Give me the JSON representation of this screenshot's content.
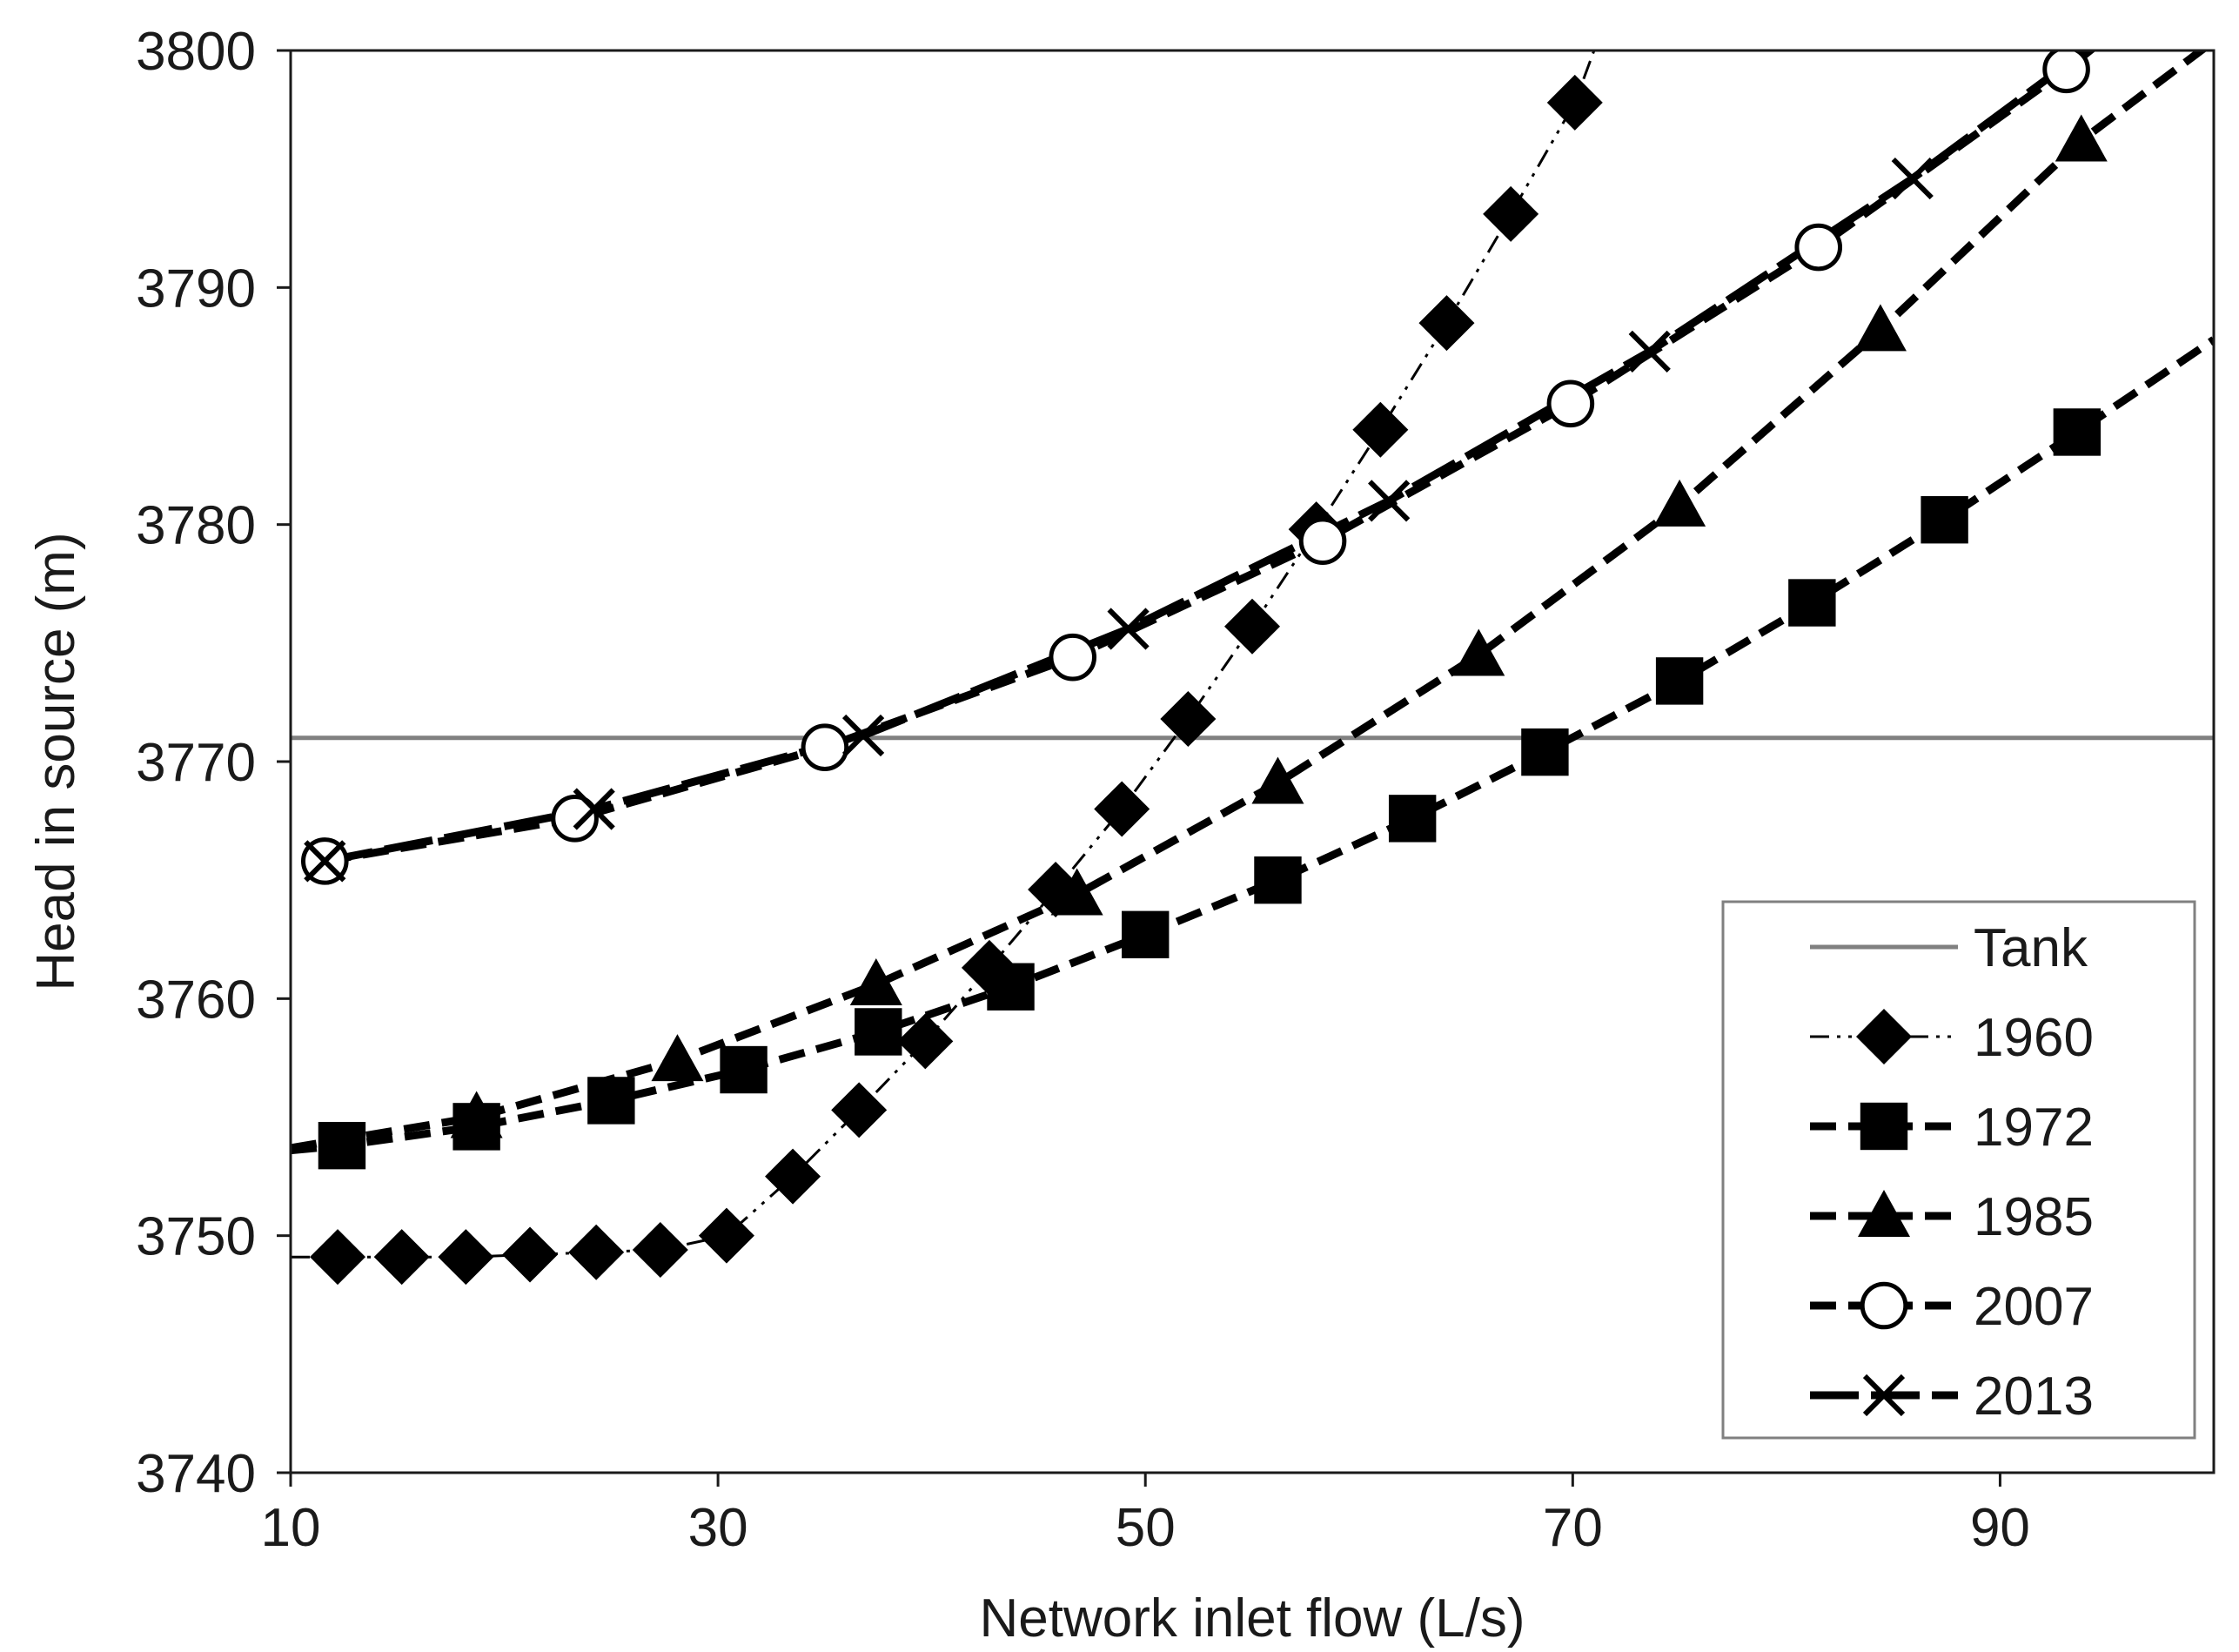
{
  "chart_data": {
    "type": "line",
    "xlabel": "Network inlet flow (L/s)",
    "ylabel": "Head in source (m)",
    "xlim": [
      10,
      100
    ],
    "ylim": [
      3740,
      3800
    ],
    "xticks": [
      10,
      30,
      50,
      70,
      90
    ],
    "yticks": [
      3740,
      3750,
      3760,
      3770,
      3780,
      3790,
      3800
    ],
    "grid": false,
    "legend_position": "bottom-right",
    "series": [
      {
        "name": "Tank",
        "style": "solid",
        "marker": "none",
        "color": "#808080",
        "x": [
          10,
          100
        ],
        "y": [
          3771,
          3771
        ]
      },
      {
        "name": "1960",
        "style": "dashdotdot",
        "marker": "diamond",
        "color": "#000000",
        "x": [
          10,
          12.2,
          15.2,
          18.2,
          21.2,
          24.3,
          27.3,
          30.4,
          33.5,
          36.6,
          39.7,
          42.7,
          45.8,
          48.9,
          52,
          55,
          58,
          61,
          64.1,
          67.1,
          70.1,
          71
        ],
        "y": [
          3749.1,
          3749.1,
          3749.1,
          3749.1,
          3749.2,
          3749.3,
          3749.4,
          3750,
          3752.5,
          3755.3,
          3758.2,
          3761.3,
          3764.6,
          3768,
          3771.8,
          3775.7,
          3779.8,
          3784,
          3788.5,
          3793.1,
          3797.8,
          3800
        ]
      },
      {
        "name": "1972",
        "style": "dashed",
        "marker": "square",
        "color": "#000000",
        "x": [
          10,
          12.4,
          18.7,
          25,
          31.2,
          37.5,
          43.7,
          50,
          56.2,
          62.5,
          68.7,
          75,
          81.2,
          87.4,
          93.6,
          100
        ],
        "y": [
          3753.6,
          3753.8,
          3754.6,
          3755.7,
          3757,
          3758.6,
          3760.5,
          3762.7,
          3765,
          3767.6,
          3770.4,
          3773.4,
          3776.7,
          3780.2,
          3783.9,
          3787.8
        ]
      },
      {
        "name": "1985",
        "style": "dashed",
        "marker": "triangle",
        "color": "#000000",
        "x": [
          10,
          18.7,
          28.1,
          37.4,
          46.8,
          56.2,
          65.6,
          75,
          84.4,
          93.8,
          100
        ],
        "y": [
          3753.7,
          3755,
          3757.4,
          3760.6,
          3764.4,
          3769.1,
          3774.5,
          3780.8,
          3788.2,
          3796.2,
          3800.4
        ]
      },
      {
        "name": "2007",
        "style": "dashed",
        "marker": "circle-open",
        "color": "#000000",
        "x": [
          11.6,
          23.3,
          35,
          46.6,
          58.3,
          69.9,
          81.5,
          93.1,
          97
        ],
        "y": [
          3765.8,
          3767.6,
          3770.6,
          3774.4,
          3779.3,
          3785.1,
          3791.7,
          3799.2,
          3802
        ]
      },
      {
        "name": "2013",
        "style": "long-dashed",
        "marker": "x",
        "color": "#000000",
        "x": [
          11.6,
          24.2,
          36.8,
          49.2,
          61.4,
          73.6,
          85.9,
          97
        ],
        "y": [
          3765.8,
          3768,
          3771.1,
          3775.6,
          3781,
          3787.3,
          3794.6,
          3802
        ]
      }
    ]
  }
}
